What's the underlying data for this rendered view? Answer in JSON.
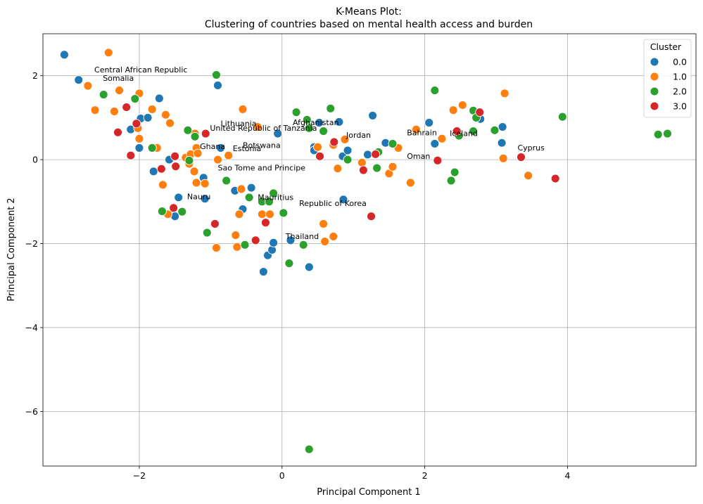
{
  "chart_data": {
    "type": "scatter",
    "title": "K-Means Plot:",
    "subtitle": "Clustering of countries based on mental health access and burden",
    "xlabel": "Principal Component 1",
    "ylabel": "Principal Component 2",
    "xlim": [
      -3.35,
      5.8
    ],
    "ylim": [
      -7.3,
      3.0
    ],
    "xticks": [
      -2,
      0,
      2,
      4
    ],
    "yticks": [
      -6,
      -4,
      -2,
      0,
      2
    ],
    "xtick_labels": [
      "−2",
      "0",
      "2",
      "4"
    ],
    "ytick_labels": [
      "−6",
      "−4",
      "−2",
      "0",
      "2"
    ],
    "grid": true,
    "legend": {
      "title": "Cluster",
      "position": "top-right",
      "entries": [
        "0.0",
        "1.0",
        "2.0",
        "3.0"
      ]
    },
    "series": [
      {
        "name": "0.0",
        "color": "#1f77b4",
        "points": [
          [
            -3.05,
            2.5
          ],
          [
            -2.85,
            1.9
          ],
          [
            -2.12,
            0.72
          ],
          [
            -2.0,
            0.28
          ],
          [
            -1.98,
            0.98
          ],
          [
            -1.88,
            1.0
          ],
          [
            -1.72,
            1.46
          ],
          [
            -1.8,
            -0.28
          ],
          [
            -1.58,
            0.0
          ],
          [
            -1.5,
            -1.35
          ],
          [
            -1.45,
            -0.9
          ],
          [
            -1.1,
            -0.43
          ],
          [
            -1.08,
            -0.93
          ],
          [
            -0.9,
            1.77
          ],
          [
            -0.86,
            0.28
          ],
          [
            -0.66,
            -0.74
          ],
          [
            -0.55,
            -1.18
          ],
          [
            -0.43,
            -0.67
          ],
          [
            -0.26,
            -2.67
          ],
          [
            -0.2,
            -2.28
          ],
          [
            -0.14,
            -2.15
          ],
          [
            -0.12,
            -1.98
          ],
          [
            -0.06,
            0.62
          ],
          [
            0.12,
            -1.92
          ],
          [
            0.38,
            -2.56
          ],
          [
            0.45,
            0.3
          ],
          [
            0.45,
            0.22
          ],
          [
            0.52,
            0.88
          ],
          [
            0.8,
            0.9
          ],
          [
            0.85,
            0.08
          ],
          [
            0.86,
            -0.95
          ],
          [
            0.92,
            0.22
          ],
          [
            1.2,
            0.12
          ],
          [
            1.27,
            1.05
          ],
          [
            1.45,
            0.4
          ],
          [
            2.06,
            0.88
          ],
          [
            2.14,
            0.38
          ],
          [
            2.78,
            0.97
          ],
          [
            3.08,
            0.4
          ],
          [
            3.09,
            0.78
          ]
        ]
      },
      {
        "name": "1.0",
        "color": "#ff7f0e",
        "points": [
          [
            -2.43,
            2.55
          ],
          [
            -2.72,
            1.76
          ],
          [
            -2.62,
            1.18
          ],
          [
            -2.35,
            1.15
          ],
          [
            -2.28,
            1.65
          ],
          [
            -2.0,
            1.58
          ],
          [
            -2.02,
            0.75
          ],
          [
            -2.0,
            0.5
          ],
          [
            -1.82,
            1.2
          ],
          [
            -1.75,
            0.28
          ],
          [
            -1.63,
            1.07
          ],
          [
            -1.57,
            0.87
          ],
          [
            -1.67,
            -0.6
          ],
          [
            -1.6,
            -1.3
          ],
          [
            -1.35,
            0.05
          ],
          [
            -1.3,
            -0.1
          ],
          [
            -1.28,
            0.13
          ],
          [
            -1.2,
            0.28
          ],
          [
            -1.22,
            0.62
          ],
          [
            -1.18,
            0.15
          ],
          [
            -1.2,
            -0.55
          ],
          [
            -1.08,
            -0.57
          ],
          [
            -1.23,
            -0.28
          ],
          [
            -0.92,
            -2.1
          ],
          [
            -0.9,
            0.0
          ],
          [
            -0.75,
            0.1
          ],
          [
            -0.65,
            -1.8
          ],
          [
            -0.63,
            -2.08
          ],
          [
            -0.6,
            -1.3
          ],
          [
            -0.57,
            -0.7
          ],
          [
            -0.55,
            1.2
          ],
          [
            -0.34,
            0.78
          ],
          [
            -0.28,
            -1.3
          ],
          [
            -0.17,
            -1.3
          ],
          [
            0.5,
            0.3
          ],
          [
            0.58,
            -1.53
          ],
          [
            0.6,
            -1.95
          ],
          [
            0.72,
            0.35
          ],
          [
            0.72,
            -1.83
          ],
          [
            0.78,
            -0.21
          ],
          [
            0.88,
            0.48
          ],
          [
            1.12,
            -0.07
          ],
          [
            1.5,
            -0.33
          ],
          [
            1.55,
            -0.17
          ],
          [
            1.63,
            0.28
          ],
          [
            1.8,
            -0.55
          ],
          [
            1.88,
            0.72
          ],
          [
            2.24,
            0.5
          ],
          [
            2.4,
            1.18
          ],
          [
            2.53,
            1.3
          ],
          [
            3.1,
            0.03
          ],
          [
            3.12,
            1.58
          ],
          [
            3.45,
            -0.38
          ]
        ]
      },
      {
        "name": "2.0",
        "color": "#2ca02c",
        "points": [
          [
            -2.5,
            1.55
          ],
          [
            -2.06,
            1.45
          ],
          [
            -1.82,
            0.28
          ],
          [
            -1.68,
            -1.23
          ],
          [
            -1.4,
            -1.24
          ],
          [
            -1.32,
            0.7
          ],
          [
            -1.3,
            -0.02
          ],
          [
            -1.22,
            0.55
          ],
          [
            -1.05,
            -1.74
          ],
          [
            -0.92,
            2.02
          ],
          [
            -0.78,
            -0.5
          ],
          [
            -0.52,
            -2.03
          ],
          [
            -0.46,
            -0.9
          ],
          [
            -0.28,
            -1.0
          ],
          [
            -0.18,
            -1.0
          ],
          [
            -0.12,
            -0.8
          ],
          [
            0.02,
            -1.27
          ],
          [
            0.1,
            -2.47
          ],
          [
            0.2,
            1.13
          ],
          [
            0.3,
            -2.03
          ],
          [
            0.35,
            0.95
          ],
          [
            0.38,
            0.75
          ],
          [
            0.38,
            -6.9
          ],
          [
            0.58,
            0.68
          ],
          [
            0.68,
            1.22
          ],
          [
            0.92,
            0.0
          ],
          [
            1.33,
            -0.2
          ],
          [
            1.35,
            0.18
          ],
          [
            1.55,
            0.38
          ],
          [
            2.14,
            1.65
          ],
          [
            2.37,
            -0.5
          ],
          [
            2.42,
            -0.3
          ],
          [
            2.48,
            0.57
          ],
          [
            2.68,
            1.17
          ],
          [
            2.68,
            0.68
          ],
          [
            2.72,
            1.0
          ],
          [
            2.98,
            0.7
          ],
          [
            3.93,
            1.02
          ],
          [
            5.27,
            0.6
          ],
          [
            5.4,
            0.62
          ]
        ]
      },
      {
        "name": "3.0",
        "color": "#d62728",
        "points": [
          [
            -2.3,
            0.65
          ],
          [
            -2.18,
            1.25
          ],
          [
            -2.12,
            0.1
          ],
          [
            -2.04,
            0.86
          ],
          [
            -1.69,
            -0.22
          ],
          [
            -1.52,
            -1.15
          ],
          [
            -1.5,
            0.08
          ],
          [
            -1.49,
            -0.16
          ],
          [
            -1.07,
            0.62
          ],
          [
            -0.94,
            -1.53
          ],
          [
            -0.37,
            -1.92
          ],
          [
            -0.23,
            -1.5
          ],
          [
            0.53,
            0.08
          ],
          [
            0.73,
            0.42
          ],
          [
            1.14,
            -0.25
          ],
          [
            1.25,
            -1.35
          ],
          [
            1.31,
            0.13
          ],
          [
            2.18,
            -0.02
          ],
          [
            2.45,
            0.68
          ],
          [
            2.77,
            1.13
          ],
          [
            3.35,
            0.06
          ],
          [
            3.83,
            -0.45
          ]
        ]
      }
    ],
    "annotations": [
      {
        "text": "Central African Republic",
        "x": -2.63,
        "y": 2.08
      },
      {
        "text": "Somalia",
        "x": -2.51,
        "y": 1.88
      },
      {
        "text": "Lithuania",
        "x": -0.86,
        "y": 0.8
      },
      {
        "text": "United Republic of Tanzania",
        "x": -1.01,
        "y": 0.69
      },
      {
        "text": "Afghanistan",
        "x": 0.15,
        "y": 0.82
      },
      {
        "text": "Jordan",
        "x": 0.9,
        "y": 0.52
      },
      {
        "text": "Bahrain",
        "x": 1.75,
        "y": 0.58
      },
      {
        "text": "Iceland",
        "x": 2.35,
        "y": 0.56
      },
      {
        "text": "Cyprus",
        "x": 3.3,
        "y": 0.22
      },
      {
        "text": "Oman",
        "x": 1.75,
        "y": 0.02
      },
      {
        "text": "Ghana",
        "x": -1.15,
        "y": 0.25
      },
      {
        "text": "Botswana",
        "x": -0.55,
        "y": 0.28
      },
      {
        "text": "Estonia",
        "x": -0.69,
        "y": 0.2
      },
      {
        "text": "Sao Tome and Principe",
        "x": -0.9,
        "y": -0.26
      },
      {
        "text": "Nauru",
        "x": -1.33,
        "y": -0.94
      },
      {
        "text": "Mauritius",
        "x": -0.34,
        "y": -0.96
      },
      {
        "text": "Republic of Korea",
        "x": 0.24,
        "y": -1.1
      },
      {
        "text": "Thailand",
        "x": 0.05,
        "y": -1.89
      }
    ]
  }
}
